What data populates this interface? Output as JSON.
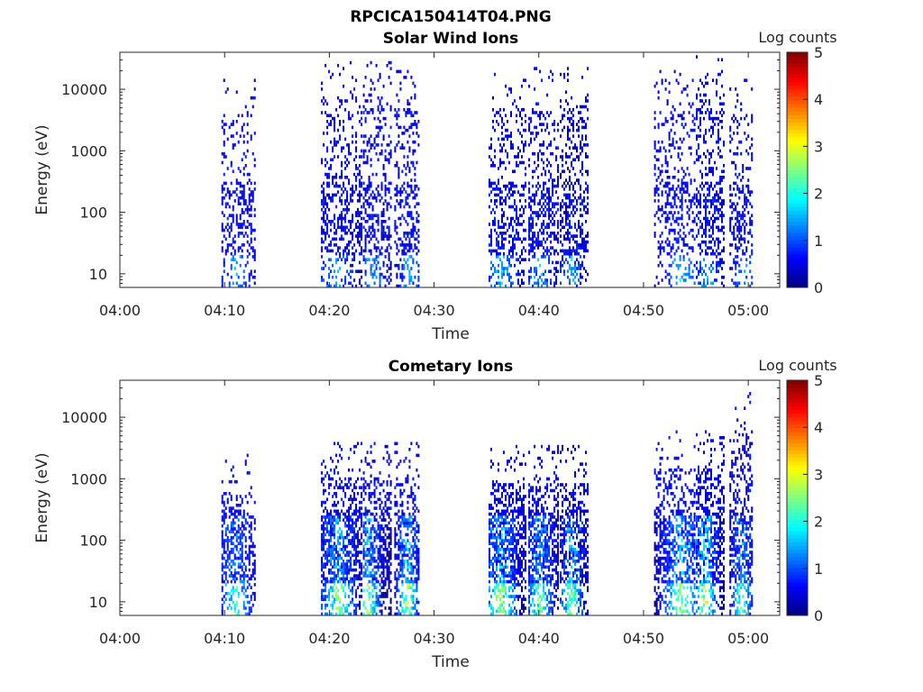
{
  "figure": {
    "title": "RPCICA150414T04.PNG"
  },
  "chart_data": [
    {
      "type": "heatmap",
      "title": "Solar Wind Ions",
      "xlabel": "Time",
      "ylabel": "Energy (eV)",
      "x_ticks": [
        "04:00",
        "04:10",
        "04:20",
        "04:30",
        "04:40",
        "04:50",
        "05:00"
      ],
      "xlim_minutes": [
        0,
        63
      ],
      "y_ticks": [
        "10",
        "100",
        "1000",
        "10000"
      ],
      "y_scale": "log",
      "ylim": [
        6,
        40000
      ],
      "colorbar": {
        "label": "Log counts",
        "ticks": [
          "0",
          "1",
          "2",
          "3",
          "4",
          "5"
        ],
        "range": [
          0,
          5
        ],
        "colormap": "jet"
      },
      "grid": false,
      "bursts": [
        {
          "start": 9.7,
          "end": 12.8,
          "peak": 11.0,
          "e_max": 15000,
          "density": 0.35,
          "intensity": 1.1
        },
        {
          "start": 19.2,
          "end": 23.0,
          "peak": 20.5,
          "e_max": 30000,
          "density": 0.4,
          "intensity": 1.1
        },
        {
          "start": 23.2,
          "end": 25.8,
          "peak": 24.0,
          "e_max": 30000,
          "density": 0.4,
          "intensity": 1.1
        },
        {
          "start": 26.2,
          "end": 28.5,
          "peak": 27.5,
          "e_max": 20000,
          "density": 0.4,
          "intensity": 1.2
        },
        {
          "start": 35.2,
          "end": 38.8,
          "peak": 36.3,
          "e_max": 20000,
          "density": 0.4,
          "intensity": 1.3
        },
        {
          "start": 39.0,
          "end": 41.8,
          "peak": 40.0,
          "e_max": 22000,
          "density": 0.45,
          "intensity": 1.2
        },
        {
          "start": 42.0,
          "end": 44.6,
          "peak": 43.0,
          "e_max": 22000,
          "density": 0.45,
          "intensity": 1.2
        },
        {
          "start": 51.0,
          "end": 54.8,
          "peak": 53.5,
          "e_max": 20000,
          "density": 0.35,
          "intensity": 1.2
        },
        {
          "start": 55.0,
          "end": 57.6,
          "peak": 56.0,
          "e_max": 35000,
          "density": 0.45,
          "intensity": 1.3
        },
        {
          "start": 58.2,
          "end": 60.4,
          "peak": 59.5,
          "e_max": 15000,
          "density": 0.4,
          "intensity": 1.1
        }
      ]
    },
    {
      "type": "heatmap",
      "title": "Cometary Ions",
      "xlabel": "Time",
      "ylabel": "Energy (eV)",
      "x_ticks": [
        "04:00",
        "04:10",
        "04:20",
        "04:30",
        "04:40",
        "04:50",
        "05:00"
      ],
      "xlim_minutes": [
        0,
        63
      ],
      "y_ticks": [
        "10",
        "100",
        "1000",
        "10000"
      ],
      "y_scale": "log",
      "ylim": [
        6,
        40000
      ],
      "colorbar": {
        "label": "Log counts",
        "ticks": [
          "0",
          "1",
          "2",
          "3",
          "4",
          "5"
        ],
        "range": [
          0,
          5
        ],
        "colormap": "jet"
      },
      "grid": false,
      "bursts": [
        {
          "start": 9.7,
          "end": 12.8,
          "peak": 11.0,
          "e_max": 2500,
          "density": 0.5,
          "intensity": 2.0
        },
        {
          "start": 19.2,
          "end": 23.0,
          "peak": 20.8,
          "e_max": 4000,
          "density": 0.6,
          "intensity": 2.4
        },
        {
          "start": 23.2,
          "end": 25.8,
          "peak": 23.6,
          "e_max": 4000,
          "density": 0.6,
          "intensity": 2.5
        },
        {
          "start": 26.2,
          "end": 28.5,
          "peak": 27.4,
          "e_max": 4000,
          "density": 0.6,
          "intensity": 2.6
        },
        {
          "start": 35.2,
          "end": 38.8,
          "peak": 36.3,
          "e_max": 3500,
          "density": 0.65,
          "intensity": 2.6
        },
        {
          "start": 39.0,
          "end": 41.8,
          "peak": 40.0,
          "e_max": 3500,
          "density": 0.65,
          "intensity": 2.3
        },
        {
          "start": 42.0,
          "end": 44.6,
          "peak": 43.0,
          "e_max": 3500,
          "density": 0.6,
          "intensity": 2.3
        },
        {
          "start": 51.0,
          "end": 54.8,
          "peak": 53.5,
          "e_max": 6000,
          "density": 0.55,
          "intensity": 2.5
        },
        {
          "start": 55.0,
          "end": 57.6,
          "peak": 55.8,
          "e_max": 6500,
          "density": 0.6,
          "intensity": 2.8
        },
        {
          "start": 58.2,
          "end": 60.4,
          "peak": 59.3,
          "e_max": 25000,
          "density": 0.55,
          "intensity": 2.2
        }
      ]
    }
  ]
}
